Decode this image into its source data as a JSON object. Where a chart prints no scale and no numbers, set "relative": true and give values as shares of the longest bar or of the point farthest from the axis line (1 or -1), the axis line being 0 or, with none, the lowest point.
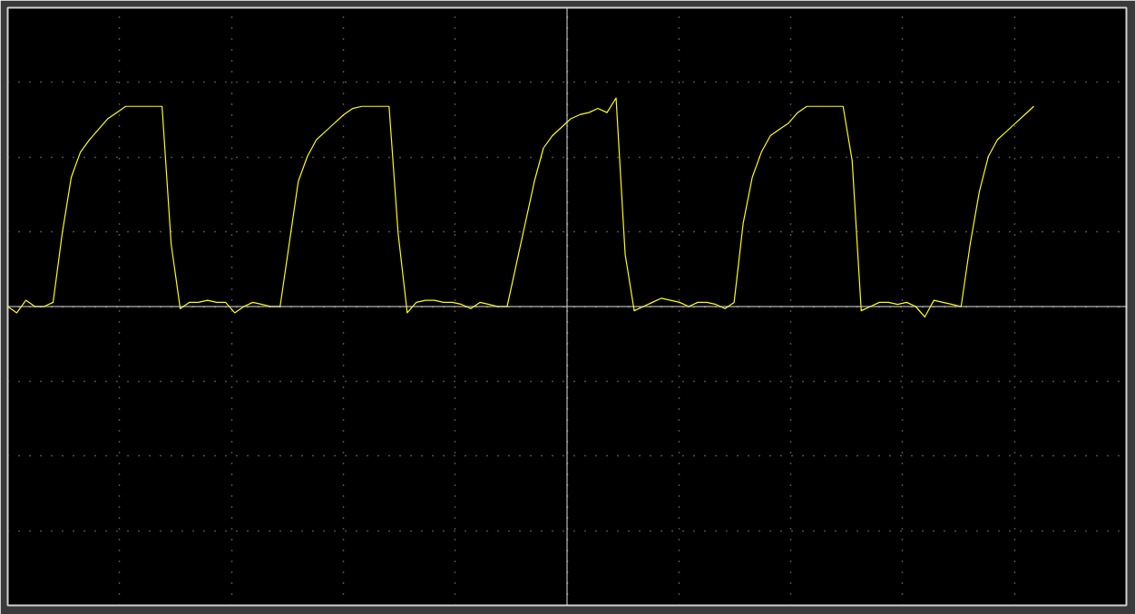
{
  "chart_data": {
    "type": "line",
    "relative": true,
    "grid": true,
    "tick_labels": false,
    "categories": [
      null,
      null,
      null,
      null,
      null,
      null,
      null,
      null,
      null,
      null,
      null,
      null,
      null,
      null,
      null,
      null,
      null,
      null,
      null,
      null,
      null,
      null,
      null,
      null,
      null,
      null,
      null,
      null,
      null,
      null,
      null,
      null,
      null,
      null,
      null,
      null,
      null,
      null,
      null,
      null,
      null,
      null,
      null,
      null,
      null,
      null,
      null,
      null,
      null,
      null,
      null,
      null,
      null,
      null,
      null,
      null,
      null,
      null,
      null,
      null,
      null,
      null,
      null,
      null,
      null,
      null,
      null,
      null,
      null,
      null,
      null,
      null,
      null,
      null,
      null,
      null,
      null,
      null,
      null,
      null,
      null,
      null,
      null,
      null,
      null,
      null,
      null,
      null,
      null,
      null,
      null,
      null,
      null,
      null,
      null,
      null,
      null,
      null,
      null,
      null,
      null,
      null,
      null,
      null,
      null,
      null,
      null,
      null,
      null,
      null,
      null,
      null,
      null,
      null
    ],
    "series": [
      {
        "color": "#ffff00",
        "values": [
          0.0,
          -0.03,
          0.03,
          0.0,
          0.0,
          0.02,
          0.35,
          0.62,
          0.74,
          0.8,
          0.85,
          0.9,
          0.93,
          0.96,
          0.96,
          0.96,
          0.96,
          0.96,
          0.3,
          -0.01,
          0.02,
          0.02,
          0.03,
          0.02,
          0.02,
          -0.03,
          0.0,
          0.02,
          0.01,
          0.0,
          0.0,
          0.3,
          0.6,
          0.72,
          0.8,
          0.84,
          0.88,
          0.92,
          0.95,
          0.96,
          0.96,
          0.96,
          0.96,
          0.35,
          -0.03,
          0.02,
          0.03,
          0.03,
          0.02,
          0.02,
          0.01,
          -0.01,
          0.02,
          0.01,
          0.0,
          0.0,
          0.2,
          0.4,
          0.6,
          0.76,
          0.82,
          0.86,
          0.9,
          0.92,
          0.93,
          0.95,
          0.93,
          1.0,
          0.25,
          -0.02,
          0.0,
          0.02,
          0.04,
          0.03,
          0.02,
          0.0,
          0.02,
          0.02,
          0.01,
          -0.01,
          0.02,
          0.4,
          0.62,
          0.74,
          0.82,
          0.85,
          0.88,
          0.93,
          0.96,
          0.96,
          0.96,
          0.96,
          0.96,
          0.7,
          -0.02,
          0.0,
          0.02,
          0.02,
          0.01,
          0.02,
          0.0,
          -0.05,
          0.03,
          0.02,
          0.01,
          0.0,
          0.3,
          0.55,
          0.72,
          0.8,
          0.84,
          0.88,
          0.92,
          0.96
        ]
      }
    ]
  }
}
